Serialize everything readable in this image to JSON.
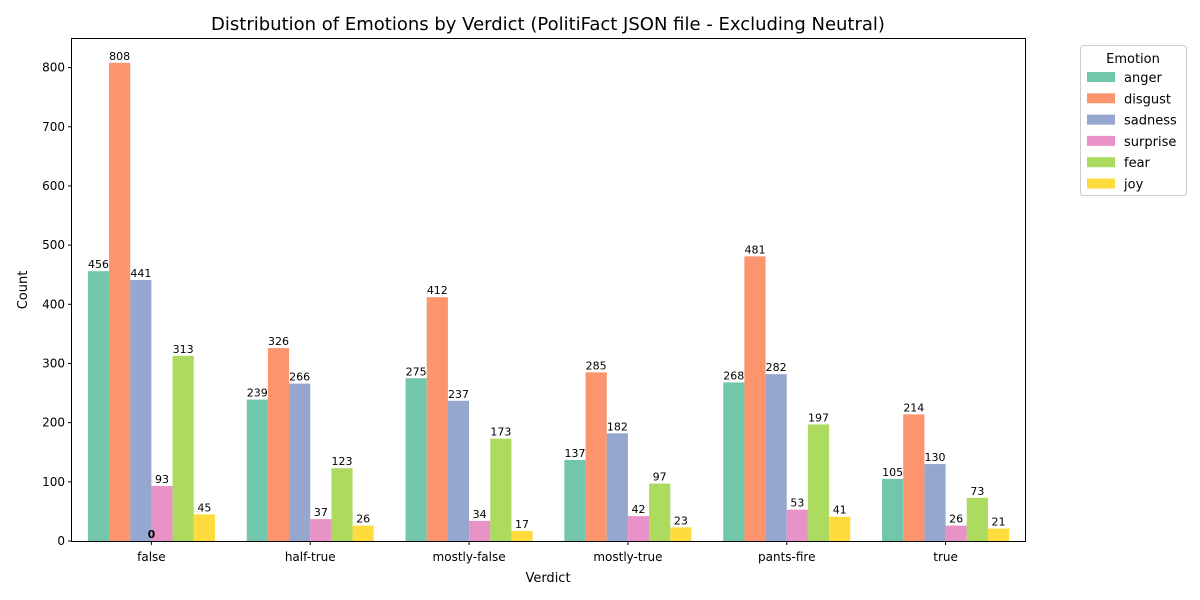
{
  "chart_data": {
    "type": "bar",
    "title": "Distribution of Emotions by Verdict (PolitiFact JSON file - Excluding Neutral)",
    "xlabel": "Verdict",
    "ylabel": "Count",
    "ylim": [
      0,
      850
    ],
    "yticks": [
      0,
      100,
      200,
      300,
      400,
      500,
      600,
      700,
      800
    ],
    "grid": false,
    "legend_title": "Emotion",
    "legend_position": "outside-top-right",
    "categories": [
      "false",
      "half-true",
      "mostly-false",
      "mostly-true",
      "pants-fire",
      "true"
    ],
    "series": [
      {
        "name": "anger",
        "color": "#66c2a5",
        "values": [
          456,
          239,
          275,
          137,
          268,
          105
        ]
      },
      {
        "name": "disgust",
        "color": "#fc8d62",
        "values": [
          808,
          326,
          412,
          285,
          481,
          214
        ]
      },
      {
        "name": "sadness",
        "color": "#8da0cb",
        "values": [
          441,
          266,
          237,
          182,
          282,
          130
        ]
      },
      {
        "name": "surprise",
        "color": "#e78ac3",
        "values": [
          93,
          37,
          34,
          42,
          53,
          26
        ]
      },
      {
        "name": "fear",
        "color": "#a6d854",
        "values": [
          313,
          123,
          173,
          97,
          197,
          73
        ]
      },
      {
        "name": "joy",
        "color": "#ffd92f",
        "values": [
          45,
          26,
          17,
          23,
          41,
          21
        ]
      }
    ],
    "annotations": [
      {
        "text": "0",
        "category": "false",
        "value": 0
      }
    ]
  }
}
